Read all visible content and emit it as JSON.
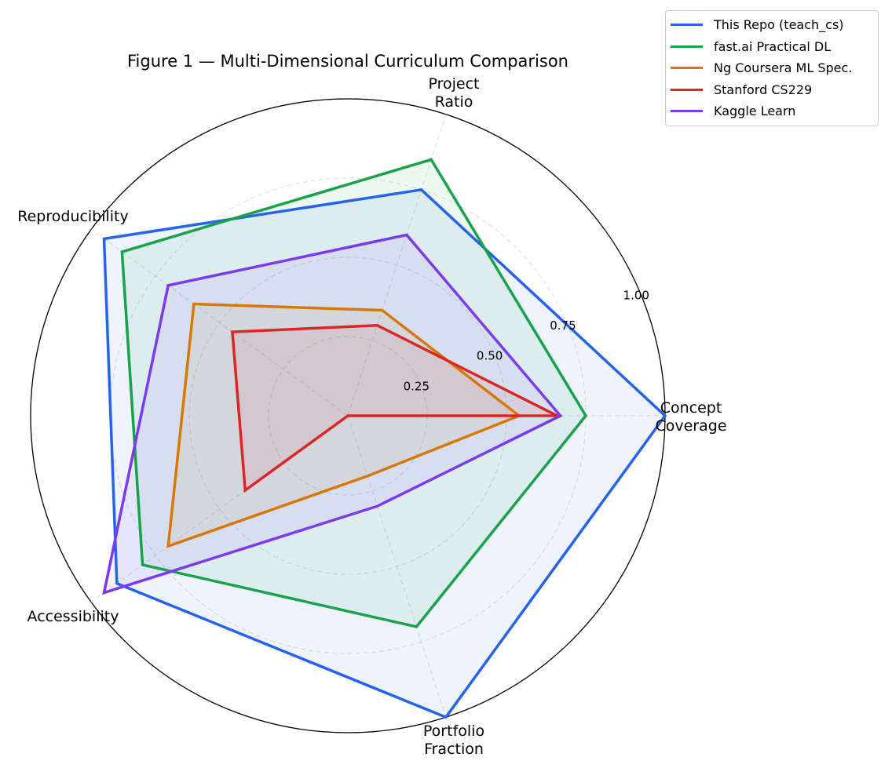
{
  "chart_data": {
    "type": "radar",
    "title": "Figure 1 — Multi-Dimensional Curriculum Comparison",
    "axes": [
      [
        "Concept",
        "Coverage"
      ],
      [
        "Project",
        "Ratio"
      ],
      [
        "Reproducibility"
      ],
      [
        "Accessibility"
      ],
      [
        "Portfolio",
        "Fraction"
      ]
    ],
    "rlim": [
      0,
      1.0
    ],
    "rticks": [
      0.25,
      0.5,
      0.75,
      1.0
    ],
    "rtick_labels": [
      "0.25",
      "0.50",
      "0.75",
      "1.00"
    ],
    "grid": true,
    "legend_placement": "top-right",
    "series": [
      {
        "name": "This Repo (teach_cs)",
        "color": "#2563eb",
        "values": [
          1.0,
          0.75,
          0.95,
          0.9,
          1.0
        ]
      },
      {
        "name": "fast.ai Practical DL",
        "color": "#16a34a",
        "values": [
          0.75,
          0.85,
          0.88,
          0.8,
          0.7
        ]
      },
      {
        "name": "Ng Coursera ML Spec.",
        "color": "#d97706",
        "values": [
          0.54,
          0.35,
          0.6,
          0.7,
          0.2
        ]
      },
      {
        "name": "Stanford CS229",
        "color": "#dc2626",
        "values": [
          0.66,
          0.3,
          0.45,
          0.4,
          0.0
        ]
      },
      {
        "name": "Kaggle Learn",
        "color": "#7c3aed",
        "values": [
          0.67,
          0.6,
          0.7,
          0.95,
          0.3
        ]
      }
    ]
  }
}
